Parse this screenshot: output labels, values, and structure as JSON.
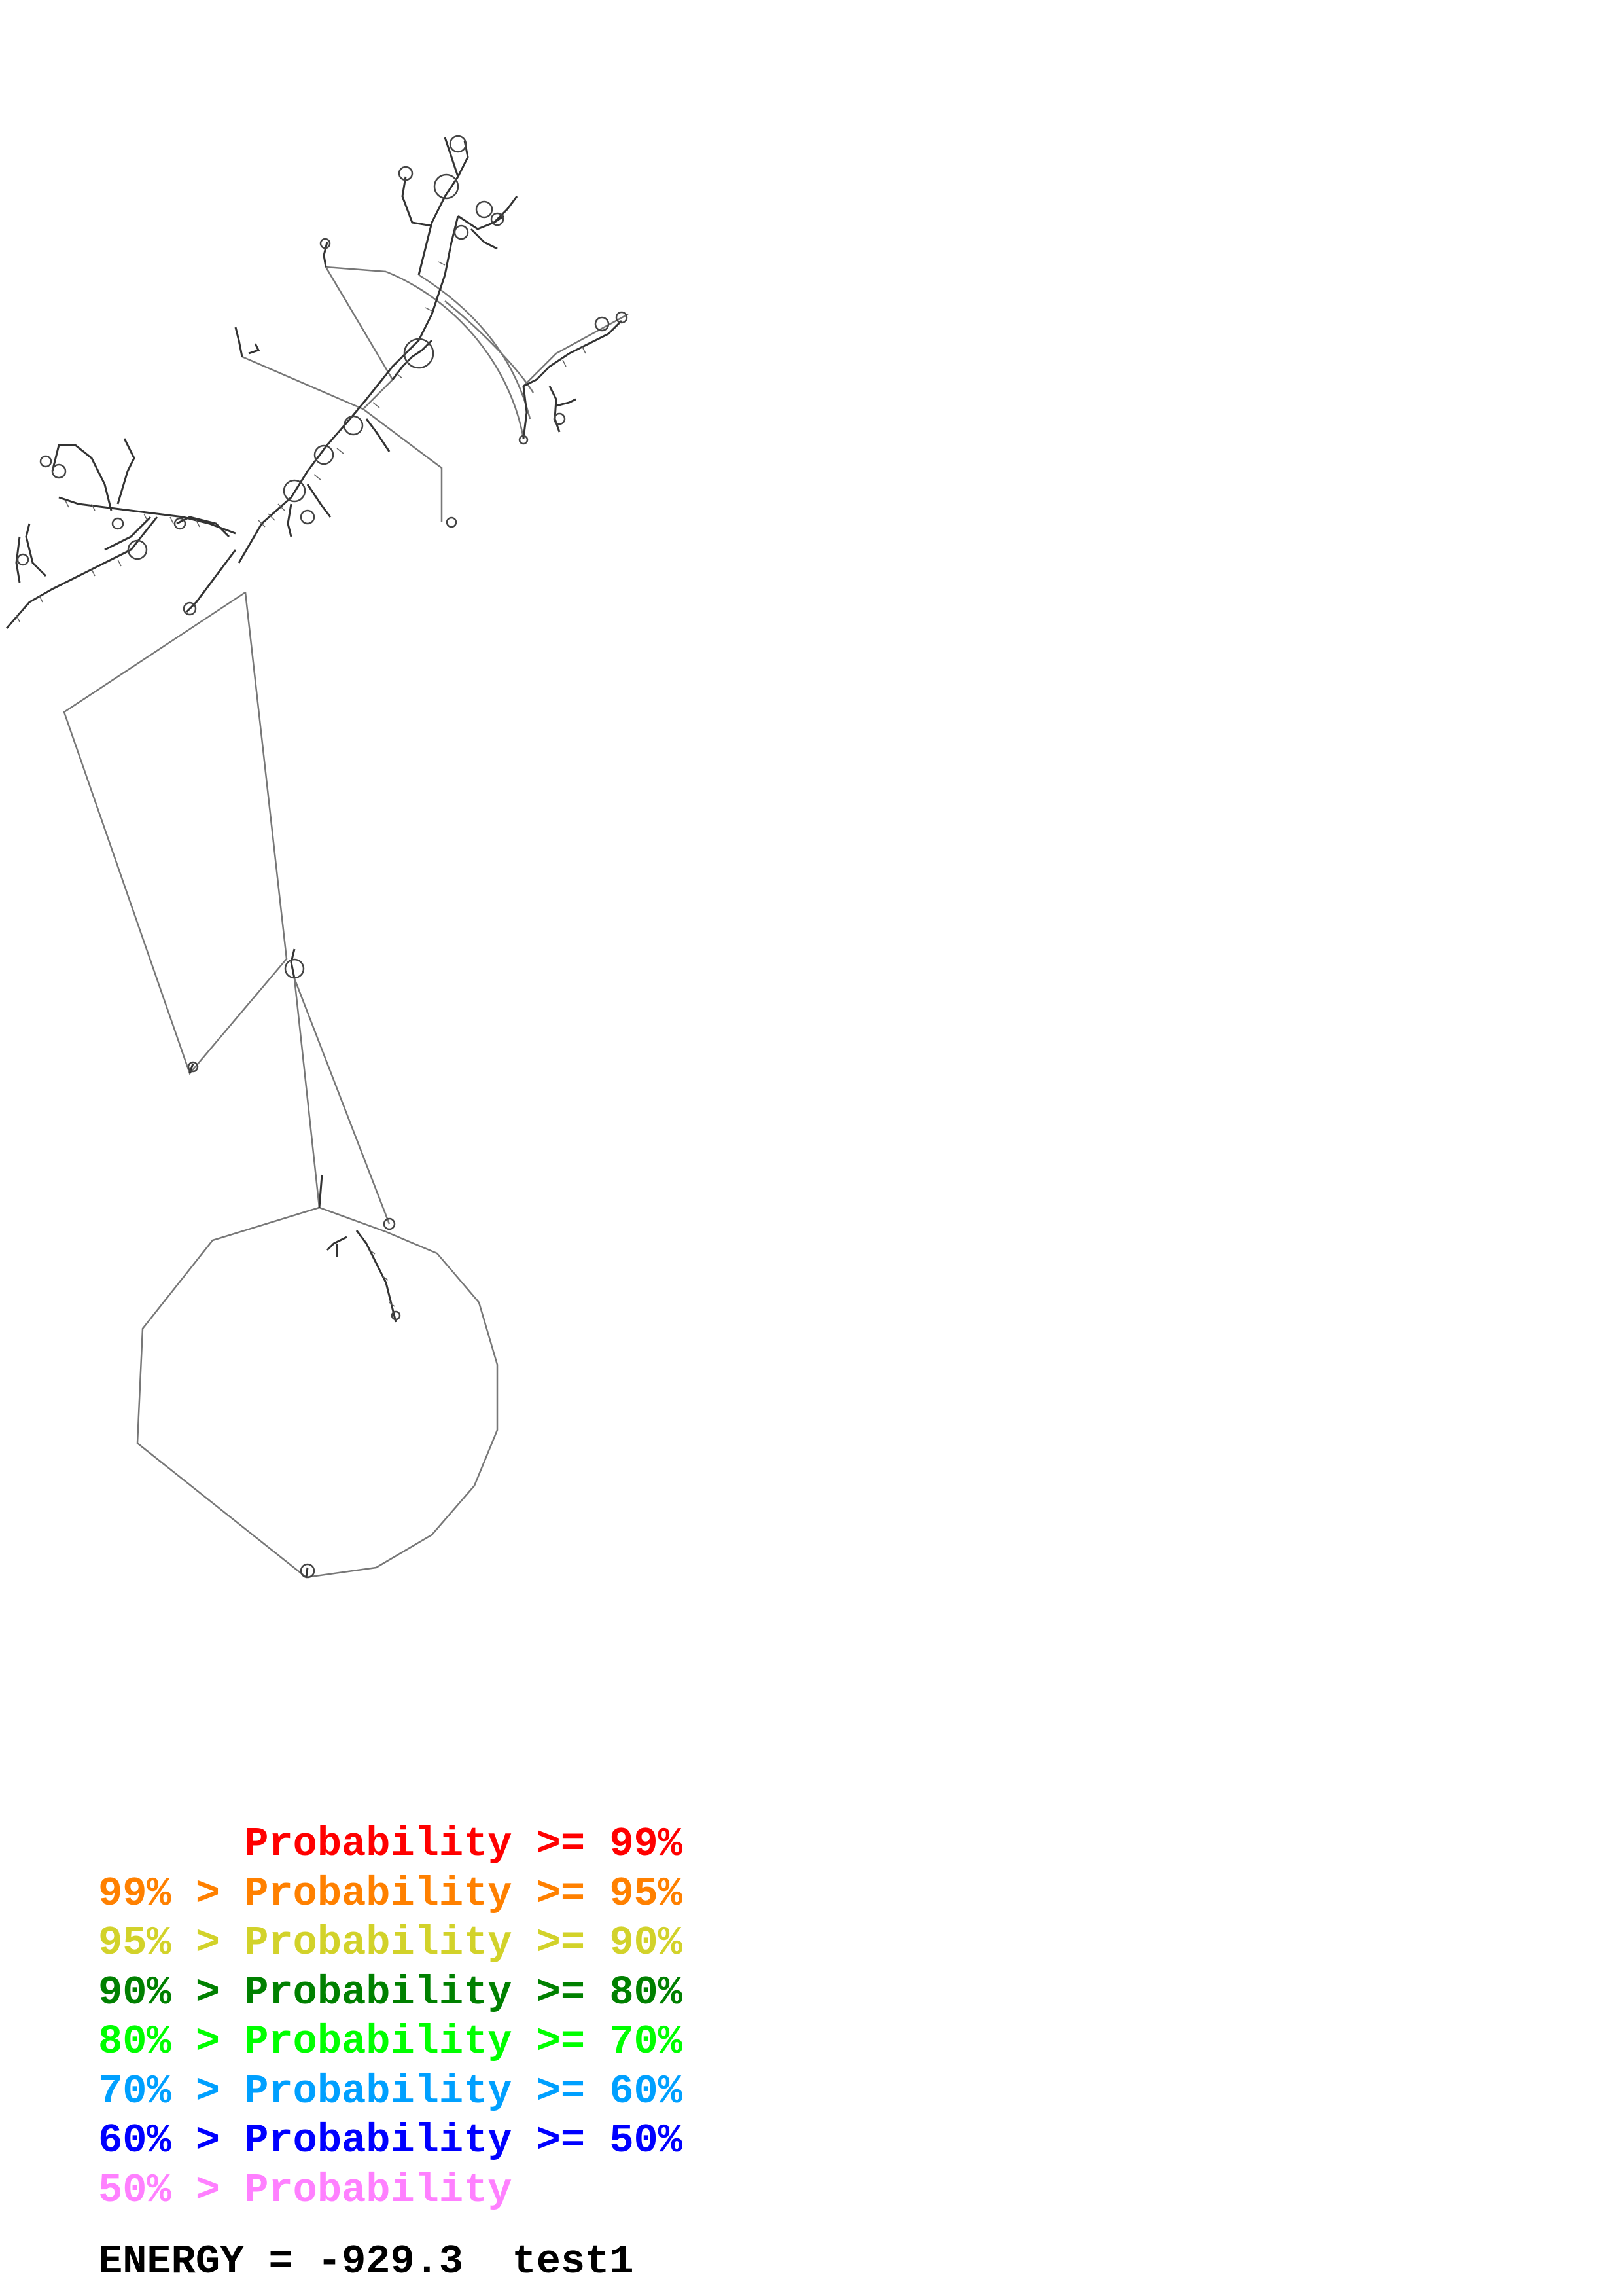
{
  "legend": {
    "rows": [
      {
        "prefix": "",
        "label": "Probability",
        "suffix": ">= 99%",
        "color": "#ff0000"
      },
      {
        "prefix": "99% >",
        "label": "Probability",
        "suffix": ">= 95%",
        "color": "#ff8000"
      },
      {
        "prefix": "95% >",
        "label": "Probability",
        "suffix": ">= 90%",
        "color": "#d2d22a"
      },
      {
        "prefix": "90% >",
        "label": "Probability",
        "suffix": ">= 80%",
        "color": "#008000"
      },
      {
        "prefix": "80% >",
        "label": "Probability",
        "suffix": ">= 70%",
        "color": "#00ff00"
      },
      {
        "prefix": "70% >",
        "label": "Probability",
        "suffix": ">= 60%",
        "color": "#00a0ff"
      },
      {
        "prefix": "60% >",
        "label": "Probability",
        "suffix": ">= 50%",
        "color": "#0000ff"
      },
      {
        "prefix": "50% >",
        "label": "Probability",
        "suffix": "",
        "color": "#ff80ff"
      }
    ]
  },
  "energy": {
    "label": "ENERGY =",
    "value": "-929.3",
    "sequence_name": "test1"
  },
  "structure_color": "#5a5a5a"
}
